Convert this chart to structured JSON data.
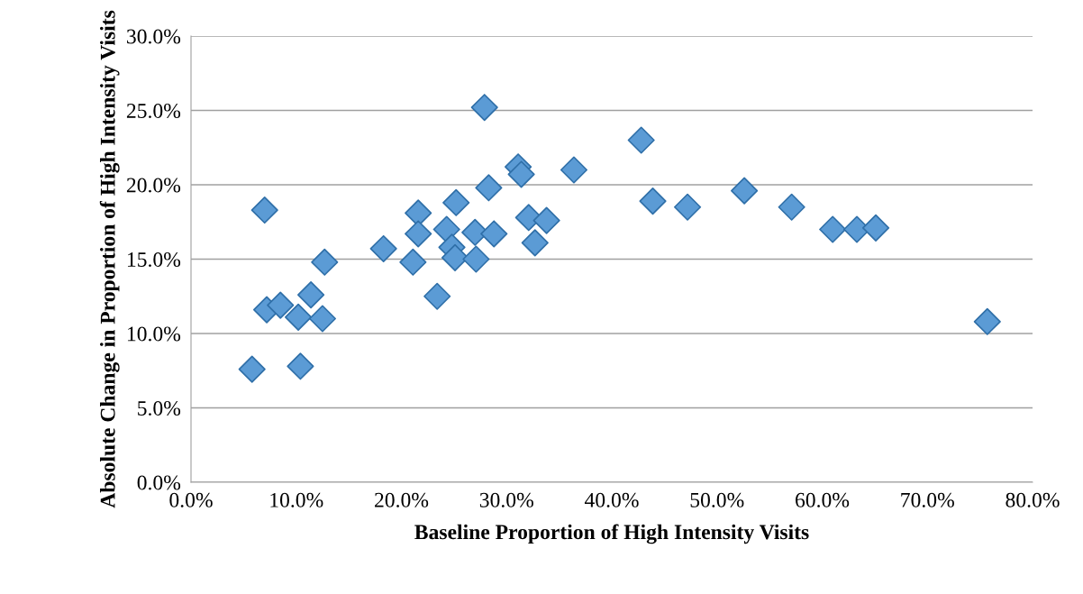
{
  "chart_data": {
    "type": "scatter",
    "xlabel": "Baseline Proportion of High Intensity Visits",
    "ylabel": "Absolute Change in Proportion of High Intensity Visits",
    "x": [
      27.9,
      7.0,
      7.2,
      8.5,
      10.2,
      11.4,
      12.5,
      12.7,
      5.8,
      10.4,
      18.3,
      21.1,
      21.6,
      21.6,
      23.4,
      25.2,
      24.3,
      24.8,
      25.1,
      27.0,
      27.1,
      28.3,
      28.8,
      31.1,
      31.4,
      36.4,
      32.1,
      33.8,
      32.7,
      42.8,
      43.9,
      47.2,
      52.6,
      57.1,
      61.0,
      63.3,
      65.1,
      75.7
    ],
    "series": [
      {
        "color": "#5b9bd5",
        "values": [
          25.2,
          18.3,
          11.6,
          11.9,
          11.1,
          12.6,
          11.0,
          14.8,
          7.6,
          7.8,
          15.7,
          14.8,
          18.1,
          16.7,
          12.5,
          18.8,
          17.0,
          15.8,
          15.1,
          16.8,
          15.0,
          19.8,
          16.7,
          21.2,
          20.7,
          21.0,
          17.8,
          17.6,
          16.1,
          23.0,
          18.9,
          18.5,
          19.6,
          18.5,
          17.0,
          17.0,
          17.1,
          10.8
        ]
      }
    ],
    "marker": "diamond",
    "grid": "y",
    "legend": false,
    "xlim": [
      0,
      80
    ],
    "ylim": [
      0,
      30
    ],
    "xticks": [
      {
        "value": 0,
        "label": "0.0%"
      },
      {
        "value": 10,
        "label": "10.0%"
      },
      {
        "value": 20,
        "label": "20.0%"
      },
      {
        "value": 30,
        "label": "30.0%"
      },
      {
        "value": 40,
        "label": "40.0%"
      },
      {
        "value": 50,
        "label": "50.0%"
      },
      {
        "value": 60,
        "label": "60.0%"
      },
      {
        "value": 70,
        "label": "70.0%"
      },
      {
        "value": 80,
        "label": "80.0%"
      }
    ],
    "yticks": [
      {
        "value": 0,
        "label": "0.0%"
      },
      {
        "value": 5,
        "label": "5.0%"
      },
      {
        "value": 10,
        "label": "10.0%"
      },
      {
        "value": 15,
        "label": "15.0%"
      },
      {
        "value": 20,
        "label": "20.0%"
      },
      {
        "value": 25,
        "label": "25.0%"
      },
      {
        "value": 30,
        "label": "30.0%"
      }
    ]
  }
}
